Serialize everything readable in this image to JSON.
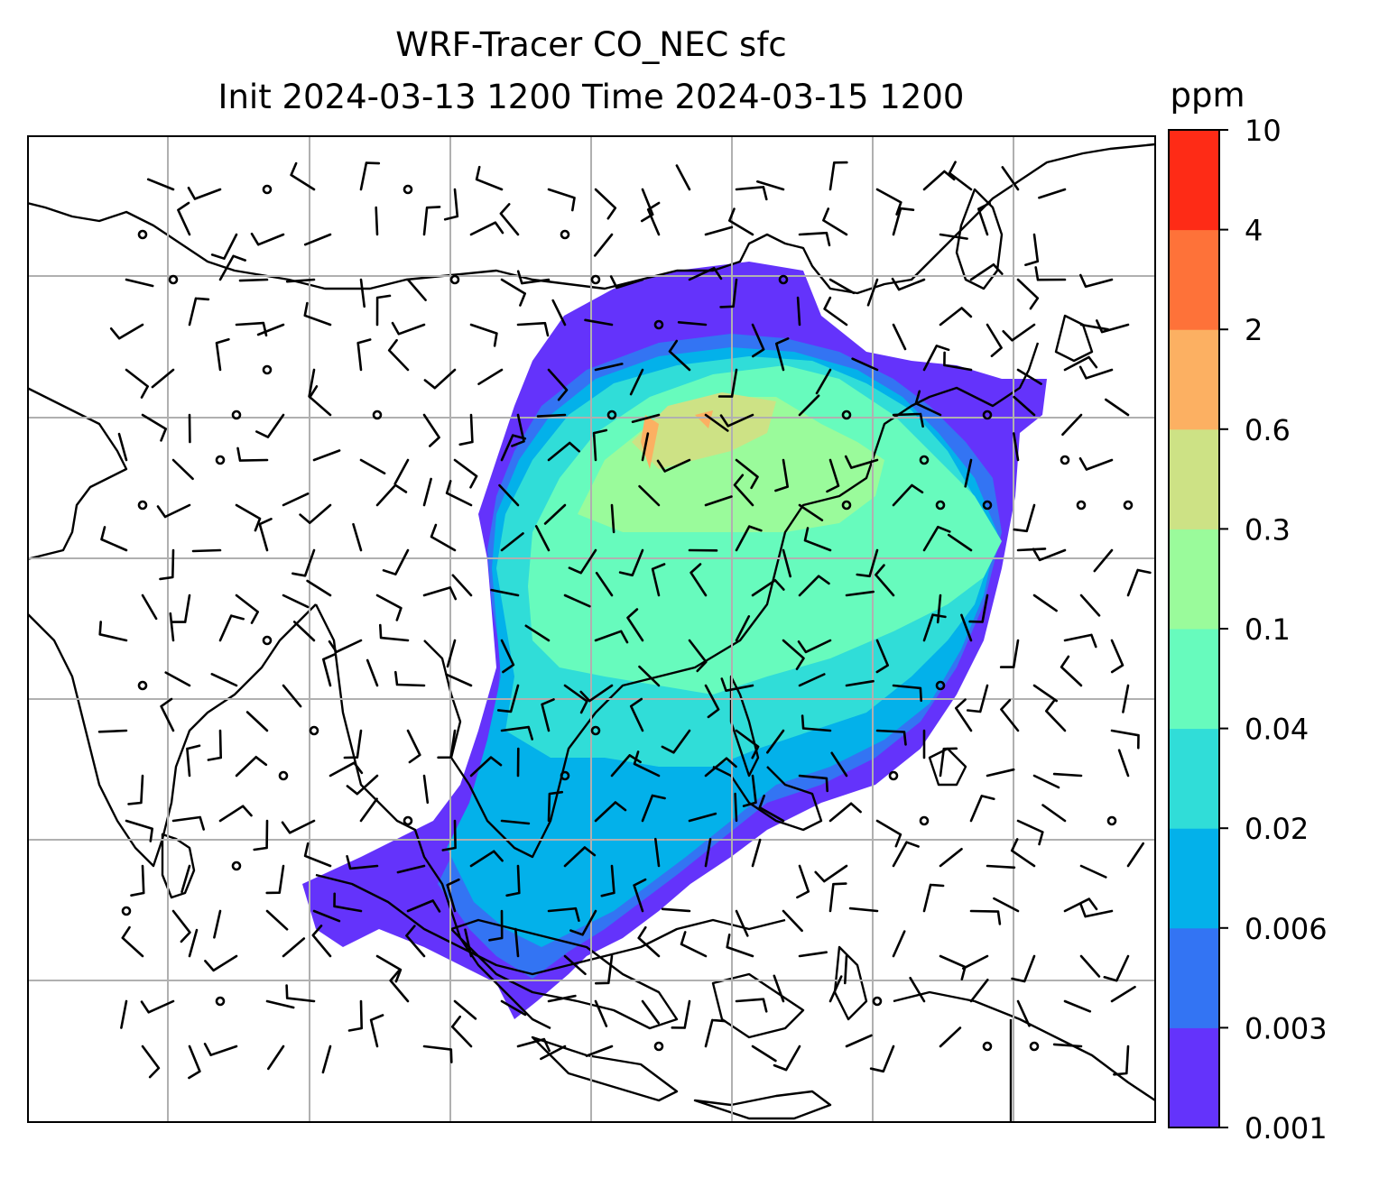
{
  "title": {
    "line1": "WRF-Tracer CO_NEC sfc",
    "line2": "Init 2024-03-13 1200 Time 2024-03-15 1200"
  },
  "colorbar": {
    "unit": "ppm",
    "levels": [
      "0.001",
      "0.003",
      "0.006",
      "0.02",
      "0.04",
      "0.1",
      "0.3",
      "0.6",
      "2",
      "4",
      "10"
    ],
    "colors": [
      "#6433fb",
      "#3374f3",
      "#03b1ea",
      "#30ddd8",
      "#67fbbd",
      "#9afb9b",
      "#cde285",
      "#fcb062",
      "#fe7239",
      "#fe2b16"
    ]
  },
  "map": {
    "gridlines": true,
    "coastline_color": "#000000",
    "grid_color": "#b0b0b0"
  }
}
